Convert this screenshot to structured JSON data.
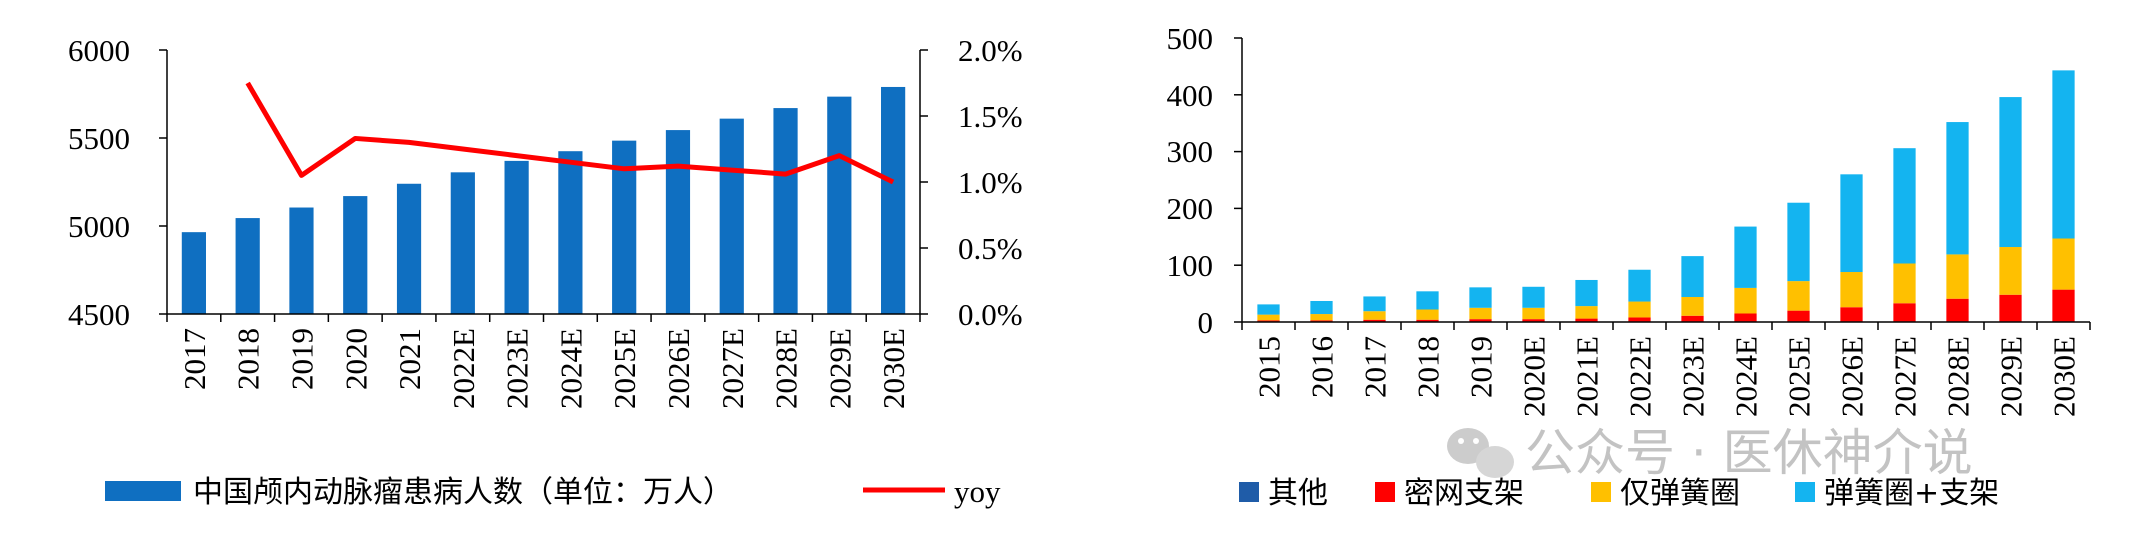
{
  "chart_data": [
    {
      "type": "bar+line",
      "categories": [
        "2017",
        "2018",
        "2019",
        "2020",
        "2021",
        "2022E",
        "2023E",
        "2024E",
        "2025E",
        "2026E",
        "2027E",
        "2028E",
        "2029E",
        "2030E"
      ],
      "series": [
        {
          "name": "中国颅内动脉瘤患病人数（单位：万人）",
          "axis": "left",
          "type": "bar",
          "color": "#0f6fc1",
          "values": [
            4965,
            5045,
            5105,
            5170,
            5240,
            5305,
            5370,
            5425,
            5485,
            5545,
            5610,
            5670,
            5735,
            5790
          ]
        },
        {
          "name": "yoy",
          "axis": "right",
          "type": "line",
          "color": "#ff0000",
          "values": [
            null,
            1.75,
            1.05,
            1.33,
            1.3,
            1.25,
            1.2,
            1.15,
            1.1,
            1.12,
            1.09,
            1.06,
            1.2,
            1.0
          ]
        }
      ],
      "y_left": {
        "min": 4500,
        "max": 6000,
        "ticks": [
          "6000",
          "5500",
          "5000",
          "4500"
        ]
      },
      "y_right": {
        "min": 0,
        "max": 2.0,
        "ticks": [
          "2.0%",
          "1.5%",
          "1.0%",
          "0.5%",
          "0.0%"
        ]
      },
      "legend": [
        {
          "label": "中国颅内动脉瘤患病人数（单位：万人）",
          "color": "#0f6fc1"
        },
        {
          "label": "yoy",
          "color": "#ff0000"
        }
      ]
    },
    {
      "type": "stacked-bar",
      "categories": [
        "2015",
        "2016",
        "2017",
        "2018",
        "2019",
        "2020E",
        "2021E",
        "2022E",
        "2023E",
        "2024E",
        "2025E",
        "2026E",
        "2027E",
        "2028E",
        "2029E",
        "2030E"
      ],
      "series": [
        {
          "name": "其他",
          "color": "#1f5ca8",
          "values": [
            1,
            1,
            1,
            1,
            1,
            1,
            1,
            1,
            1,
            1,
            1,
            1,
            1,
            1,
            1,
            1
          ]
        },
        {
          "name": "密网支架",
          "color": "#ff0000",
          "values": [
            2,
            2,
            3,
            3,
            4,
            4,
            5,
            7,
            10,
            14,
            19,
            25,
            32,
            40,
            47,
            56
          ]
        },
        {
          "name": "仅弹簧圈",
          "color": "#ffc000",
          "values": [
            10,
            11,
            15,
            18,
            20,
            20,
            22,
            28,
            33,
            45,
            52,
            62,
            70,
            78,
            84,
            90
          ]
        },
        {
          "name": "弹簧圈+支架",
          "color": "#14b4f0",
          "values": [
            18,
            23,
            26,
            32,
            36,
            37,
            46,
            56,
            72,
            108,
            138,
            172,
            203,
            233,
            264,
            296
          ]
        }
      ],
      "y": {
        "min": 0,
        "max": 500,
        "ticks": [
          "500",
          "400",
          "300",
          "200",
          "100",
          "0"
        ]
      }
    }
  ],
  "watermark": {
    "text": "公众号 · 医休神介说"
  }
}
